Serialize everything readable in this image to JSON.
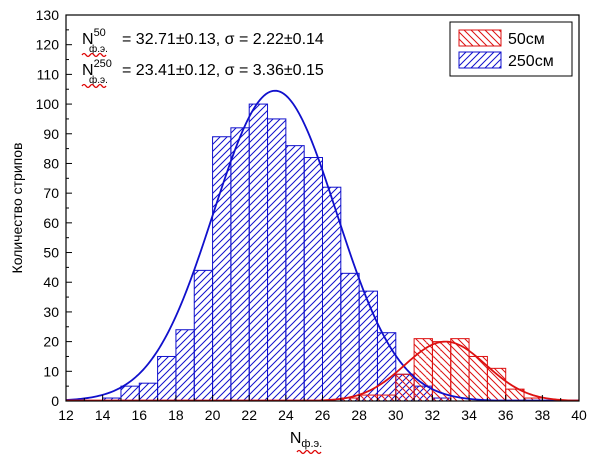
{
  "chart_data": {
    "type": "bar",
    "xlabel_main": "N",
    "xlabel_sub": "ф.э.",
    "ylabel": "Количество стрипов",
    "xlim": [
      12,
      40
    ],
    "ylim": [
      0,
      130
    ],
    "xticks": [
      12,
      14,
      16,
      18,
      20,
      22,
      24,
      26,
      28,
      30,
      32,
      34,
      36,
      38,
      40
    ],
    "yticks": [
      0,
      10,
      20,
      30,
      40,
      50,
      60,
      70,
      80,
      90,
      100,
      110,
      120,
      130
    ],
    "bin_width": 1,
    "legend": {
      "position": "top-right"
    },
    "annotations": [
      {
        "sym": "N",
        "sup": "50",
        "sub": "ф.э.",
        "text": "= 32.71±0.13, σ = 2.22±0.14"
      },
      {
        "sym": "N",
        "sup": "250",
        "sub": "ф.э.",
        "text": "= 23.41±0.12, σ = 3.36±0.15"
      }
    ],
    "series": [
      {
        "name": "250см",
        "color": "#1010cc",
        "bins_left": [
          13,
          14,
          15,
          16,
          17,
          18,
          19,
          20,
          21,
          22,
          23,
          24,
          25,
          26,
          27,
          28,
          29,
          30,
          31,
          32
        ],
        "values": [
          0,
          1,
          5,
          6,
          15,
          24,
          44,
          89,
          92,
          100,
          95,
          86,
          82,
          72,
          43,
          37,
          23,
          9,
          5,
          1
        ],
        "fit": {
          "mean": 23.41,
          "sigma": 3.36,
          "amplitude": 104.5
        }
      },
      {
        "name": "50см",
        "color": "#dd1111",
        "bins_left": [
          27,
          28,
          29,
          30,
          31,
          32,
          33,
          34,
          35,
          36,
          37
        ],
        "values": [
          1,
          2,
          2,
          9,
          21,
          20,
          21,
          15,
          11,
          4,
          1
        ],
        "fit": {
          "mean": 32.71,
          "sigma": 2.22,
          "amplitude": 20
        }
      }
    ]
  }
}
